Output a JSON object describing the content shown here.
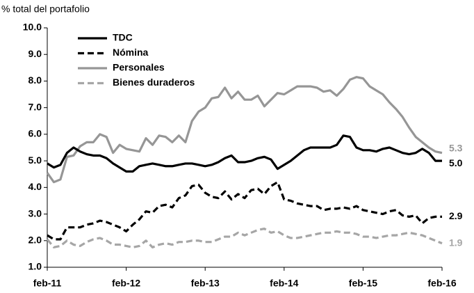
{
  "chart_data": {
    "type": "line",
    "y_axis_label": "% total del portafolio",
    "categories": [
      "feb-11",
      null,
      null,
      null,
      null,
      null,
      null,
      null,
      null,
      null,
      null,
      null,
      "feb-12",
      null,
      null,
      null,
      null,
      null,
      null,
      null,
      null,
      null,
      null,
      null,
      "feb-13",
      null,
      null,
      null,
      null,
      null,
      null,
      null,
      null,
      null,
      null,
      null,
      "feb-14",
      null,
      null,
      null,
      null,
      null,
      null,
      null,
      null,
      null,
      null,
      null,
      "feb-15",
      null,
      null,
      null,
      null,
      null,
      null,
      null,
      null,
      null,
      null,
      null,
      "feb-16"
    ],
    "ylim": [
      1,
      10
    ],
    "yticks": [
      {
        "value": 1,
        "label": "1.0"
      },
      {
        "value": 2,
        "label": "2.0"
      },
      {
        "value": 3,
        "label": "3.0"
      },
      {
        "value": 4,
        "label": "4.0"
      },
      {
        "value": 5,
        "label": "5.0"
      },
      {
        "value": 6,
        "label": "6.0"
      },
      {
        "value": 7,
        "label": "7.0"
      },
      {
        "value": 8,
        "label": "8.0"
      },
      {
        "value": 9,
        "label": "9.0"
      },
      {
        "value": 10,
        "label": "10.0"
      }
    ],
    "legend": "upper left",
    "series": [
      {
        "name": "TDC",
        "color": "#000000",
        "dash": false,
        "values": [
          4.9,
          4.75,
          4.85,
          5.3,
          5.5,
          5.35,
          5.25,
          5.2,
          5.2,
          5.1,
          4.9,
          4.75,
          4.6,
          4.6,
          4.8,
          4.85,
          4.9,
          4.85,
          4.8,
          4.8,
          4.85,
          4.9,
          4.9,
          4.85,
          4.8,
          4.85,
          4.95,
          5.1,
          5.2,
          4.95,
          4.95,
          5.0,
          5.1,
          5.15,
          5.05,
          4.7,
          4.85,
          5.0,
          5.2,
          5.4,
          5.5,
          5.5,
          5.5,
          5.5,
          5.6,
          5.95,
          5.9,
          5.5,
          5.4,
          5.4,
          5.35,
          5.45,
          5.5,
          5.4,
          5.3,
          5.25,
          5.3,
          5.45,
          5.3,
          5.0,
          5.0
        ],
        "value_labels": [
          null,
          null,
          null,
          null,
          null,
          null,
          null,
          null,
          null,
          null,
          null,
          null,
          null,
          null,
          null,
          null,
          null,
          null,
          null,
          null,
          null,
          null,
          null,
          null,
          null,
          null,
          null,
          null,
          null,
          null,
          null,
          null,
          null,
          null,
          null,
          null,
          null,
          null,
          null,
          null,
          null,
          null,
          null,
          null,
          null,
          null,
          null,
          null,
          null,
          null,
          null,
          null,
          null,
          null,
          null,
          null,
          null,
          null,
          null,
          null,
          "5.0"
        ]
      },
      {
        "name": "Nómina",
        "color": "#000000",
        "dash": true,
        "values": [
          2.2,
          2.05,
          2.05,
          2.5,
          2.5,
          2.5,
          2.6,
          2.65,
          2.75,
          2.7,
          2.6,
          2.5,
          2.35,
          2.6,
          2.8,
          3.1,
          3.05,
          3.3,
          3.35,
          3.25,
          3.6,
          3.7,
          4.05,
          4.1,
          3.8,
          3.65,
          3.6,
          3.85,
          3.55,
          3.75,
          3.6,
          3.9,
          3.95,
          3.75,
          4.05,
          4.2,
          3.55,
          3.5,
          3.4,
          3.35,
          3.3,
          3.3,
          3.15,
          3.2,
          3.2,
          3.25,
          3.2,
          3.3,
          3.15,
          3.1,
          3.05,
          3.0,
          3.1,
          3.15,
          2.95,
          2.9,
          2.95,
          2.65,
          2.85,
          2.9,
          2.9
        ],
        "value_labels": [
          null,
          null,
          null,
          null,
          null,
          null,
          null,
          null,
          null,
          null,
          null,
          null,
          null,
          null,
          null,
          null,
          null,
          null,
          null,
          null,
          null,
          null,
          null,
          null,
          null,
          null,
          null,
          null,
          null,
          null,
          null,
          null,
          null,
          null,
          null,
          null,
          null,
          null,
          null,
          null,
          null,
          null,
          null,
          null,
          null,
          null,
          null,
          null,
          null,
          null,
          null,
          null,
          null,
          null,
          null,
          null,
          null,
          null,
          null,
          null,
          "2.9"
        ]
      },
      {
        "name": "Personales",
        "color": "#969696",
        "dash": false,
        "values": [
          4.55,
          4.2,
          4.3,
          5.15,
          5.2,
          5.55,
          5.7,
          5.7,
          6.0,
          5.9,
          5.3,
          5.6,
          5.45,
          5.4,
          5.35,
          5.85,
          5.6,
          5.95,
          5.9,
          5.7,
          5.95,
          5.7,
          6.5,
          6.85,
          7.0,
          7.35,
          7.4,
          7.75,
          7.35,
          7.6,
          7.3,
          7.3,
          7.45,
          7.05,
          7.3,
          7.55,
          7.5,
          7.65,
          7.8,
          7.8,
          7.8,
          7.75,
          7.6,
          7.65,
          7.45,
          7.7,
          8.05,
          8.15,
          8.1,
          7.8,
          7.65,
          7.5,
          7.2,
          6.95,
          6.65,
          6.25,
          5.9,
          5.7,
          5.5,
          5.35,
          5.3
        ],
        "value_labels": [
          null,
          null,
          null,
          null,
          null,
          null,
          null,
          null,
          null,
          null,
          null,
          null,
          null,
          null,
          null,
          null,
          null,
          null,
          null,
          null,
          null,
          null,
          null,
          null,
          null,
          null,
          null,
          null,
          null,
          null,
          null,
          null,
          null,
          null,
          null,
          null,
          null,
          null,
          null,
          null,
          null,
          null,
          null,
          null,
          null,
          null,
          null,
          null,
          null,
          null,
          null,
          null,
          null,
          null,
          null,
          null,
          null,
          null,
          null,
          null,
          "5.3"
        ]
      },
      {
        "name": "Bienes duraderos",
        "color": "#a6a6a6",
        "dash": true,
        "values": [
          2.05,
          1.75,
          1.8,
          2.0,
          1.85,
          1.8,
          1.95,
          2.05,
          2.1,
          2.0,
          1.85,
          1.85,
          1.8,
          1.75,
          1.8,
          2.0,
          1.75,
          1.85,
          1.9,
          1.85,
          1.95,
          1.95,
          2.0,
          2.0,
          1.95,
          1.95,
          2.05,
          2.15,
          2.15,
          2.3,
          2.2,
          2.3,
          2.4,
          2.45,
          2.3,
          2.35,
          2.2,
          2.1,
          2.1,
          2.15,
          2.2,
          2.25,
          2.3,
          2.3,
          2.35,
          2.3,
          2.3,
          2.25,
          2.15,
          2.15,
          2.1,
          2.15,
          2.2,
          2.2,
          2.25,
          2.3,
          2.25,
          2.2,
          2.1,
          2.0,
          1.9
        ],
        "value_labels": [
          null,
          null,
          null,
          null,
          null,
          null,
          null,
          null,
          null,
          null,
          null,
          null,
          null,
          null,
          null,
          null,
          null,
          null,
          null,
          null,
          null,
          null,
          null,
          null,
          null,
          null,
          null,
          null,
          null,
          null,
          null,
          null,
          null,
          null,
          null,
          null,
          null,
          null,
          null,
          null,
          null,
          null,
          null,
          null,
          null,
          null,
          null,
          null,
          null,
          null,
          null,
          null,
          null,
          null,
          null,
          null,
          null,
          null,
          null,
          null,
          "1.9"
        ]
      }
    ]
  }
}
